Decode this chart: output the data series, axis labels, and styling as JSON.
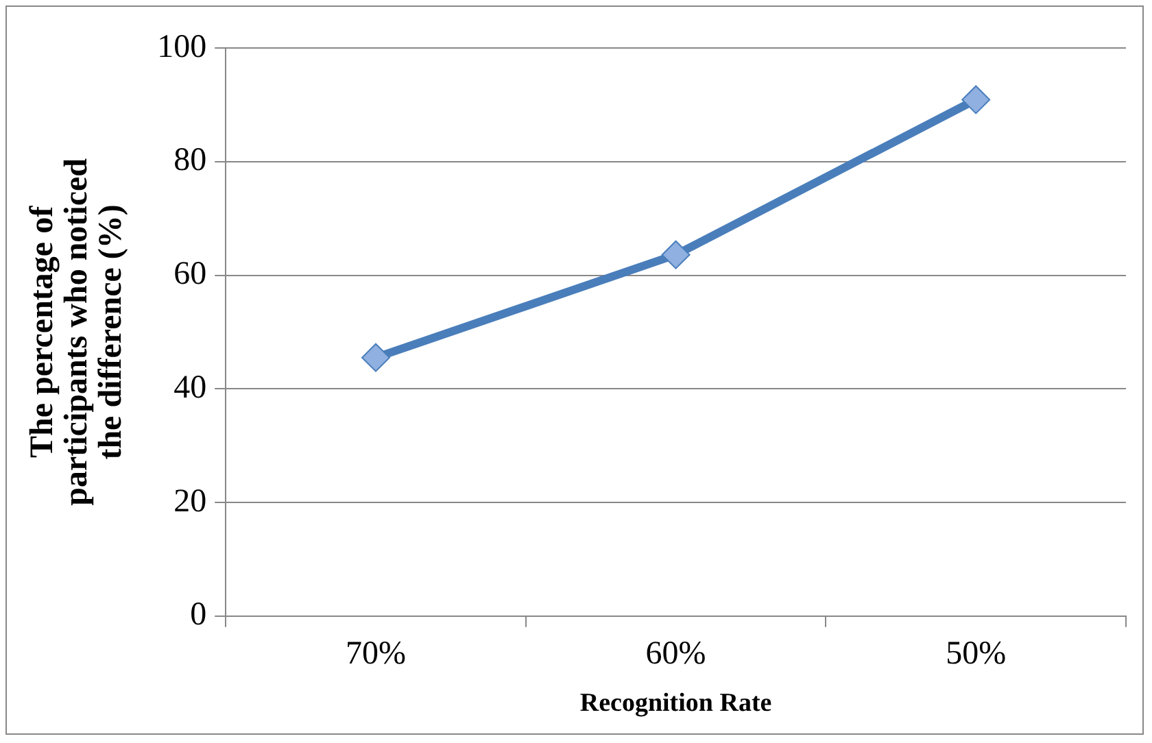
{
  "chart_data": {
    "type": "line",
    "xlabel": "Recognition Rate",
    "ylabel": "The percentage of participants who noticed the difference (%)",
    "categories": [
      "70%",
      "60%",
      "50%"
    ],
    "series": [
      {
        "color": "#4a7ebb",
        "values": [
          45.5,
          63.6,
          90.9
        ]
      }
    ],
    "ylim": [
      0,
      100
    ],
    "yticks": [
      0,
      20,
      40,
      60,
      80,
      100
    ],
    "grid": "y",
    "legend": false,
    "marker": "diamond",
    "line_style": "solid"
  }
}
